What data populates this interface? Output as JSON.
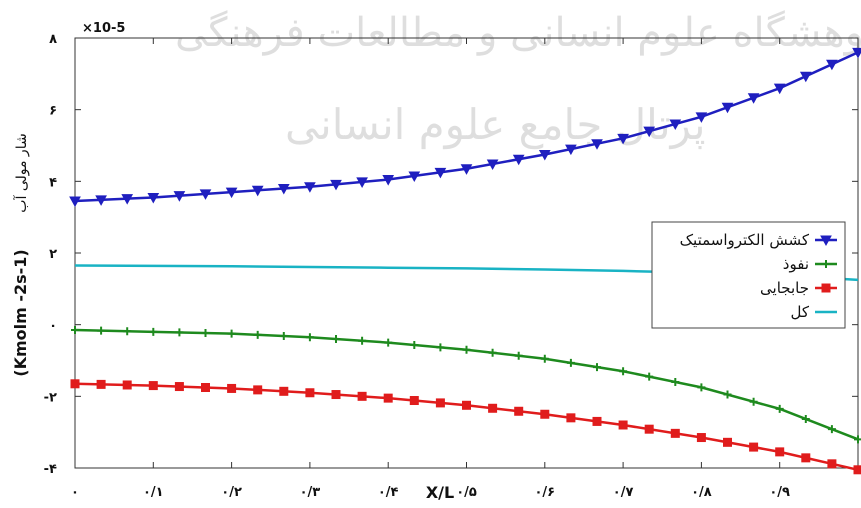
{
  "watermark": {
    "line1": "پژوهشگاه علوم انسانی و مطالعات فرهنگی",
    "line2": "پرتال جامع علوم انسانی"
  },
  "chart_data": {
    "type": "line",
    "xlabel": "X/L",
    "ylabel_text": "شار مولی آب",
    "ylabel_unit": "(Kmolm -2s-1)",
    "y_multiplier": "×10-5",
    "xlim": [
      0,
      1
    ],
    "ylim": [
      -4,
      8
    ],
    "x_ticks": [
      0,
      0.1,
      0.2,
      0.3,
      0.4,
      0.5,
      0.6,
      0.7,
      0.8,
      0.9
    ],
    "x_tick_labels": [
      "۰",
      "۰/۱",
      "۰/۲",
      "۰/۳",
      "۰/۴",
      "۰/۵",
      "۰/۶",
      "۰/۷",
      "۰/۸",
      "۰/۹"
    ],
    "y_ticks": [
      -4,
      -2,
      0,
      2,
      4,
      6,
      8
    ],
    "y_tick_labels": [
      "-۴",
      "-۲",
      "۰",
      "۲",
      "۴",
      "۶",
      "۸"
    ],
    "legend_position": "right",
    "x": [
      0,
      0.1,
      0.2,
      0.3,
      0.4,
      0.5,
      0.6,
      0.7,
      0.8,
      0.9,
      1.0
    ],
    "series": [
      {
        "name": "کشش الکترواسمتیک",
        "color": "#1f1fbf",
        "marker": "triangle-down",
        "values": [
          3.45,
          3.55,
          3.7,
          3.85,
          4.05,
          4.35,
          4.75,
          5.2,
          5.8,
          6.6,
          7.6
        ]
      },
      {
        "name": "نفوذ",
        "color": "#1e8a1e",
        "marker": "plus",
        "values": [
          -0.15,
          -0.2,
          -0.25,
          -0.35,
          -0.5,
          -0.7,
          -0.95,
          -1.3,
          -1.75,
          -2.35,
          -3.2
        ]
      },
      {
        "name": "جابجایی",
        "color": "#e01c1c",
        "marker": "square",
        "values": [
          -1.65,
          -1.7,
          -1.78,
          -1.9,
          -2.05,
          -2.25,
          -2.5,
          -2.8,
          -3.15,
          -3.55,
          -4.05
        ]
      },
      {
        "name": "کل",
        "color": "#19b3c4",
        "marker": "none",
        "values": [
          1.65,
          1.64,
          1.63,
          1.61,
          1.59,
          1.57,
          1.54,
          1.5,
          1.45,
          1.38,
          1.25
        ]
      }
    ]
  }
}
